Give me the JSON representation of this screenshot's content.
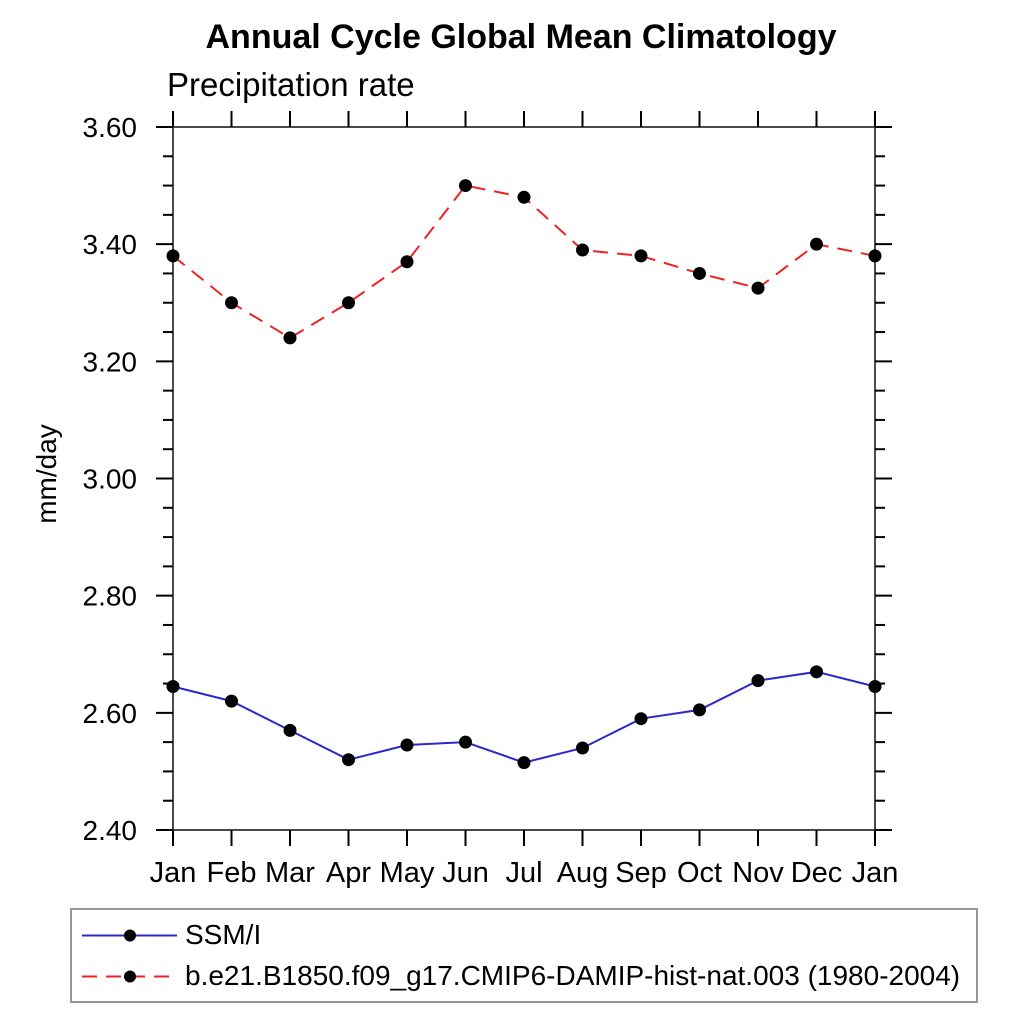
{
  "chart_data": {
    "type": "line",
    "title": "Annual Cycle Global Mean Climatology",
    "subtitle": "Precipitation rate",
    "ylabel": "mm/day",
    "xlabel": "",
    "categories": [
      "Jan",
      "Feb",
      "Mar",
      "Apr",
      "May",
      "Jun",
      "Jul",
      "Aug",
      "Sep",
      "Oct",
      "Nov",
      "Dec",
      "Jan"
    ],
    "ylim": [
      2.4,
      3.6
    ],
    "ytick_interval": 0.2,
    "yminor_interval": 0.05,
    "ytick_labels": [
      "3.60",
      "3.40",
      "3.20",
      "3.00",
      "2.80",
      "2.60",
      "2.40"
    ],
    "grid": false,
    "legend_position": "bottom-outside-box",
    "series": [
      {
        "name": "SSM/I",
        "color": "#2929cc",
        "line_style": "solid",
        "marker": "filled-circle",
        "marker_color": "#000000",
        "values": [
          2.645,
          2.62,
          2.57,
          2.52,
          2.545,
          2.55,
          2.515,
          2.54,
          2.59,
          2.605,
          2.655,
          2.67,
          2.645
        ]
      },
      {
        "name": "b.e21.B1850.f09_g17.CMIP6-DAMIP-hist-nat.003 (1980-2004)",
        "color": "#ee2222",
        "line_style": "dashed",
        "marker": "filled-circle",
        "marker_color": "#000000",
        "values": [
          3.38,
          3.3,
          3.24,
          3.3,
          3.37,
          3.5,
          3.48,
          3.39,
          3.38,
          3.35,
          3.325,
          3.4,
          3.38
        ]
      }
    ],
    "colors": {
      "frame": "#4a4a4a",
      "tick": "#000000",
      "text": "#000000",
      "legend_border": "#979797"
    }
  }
}
